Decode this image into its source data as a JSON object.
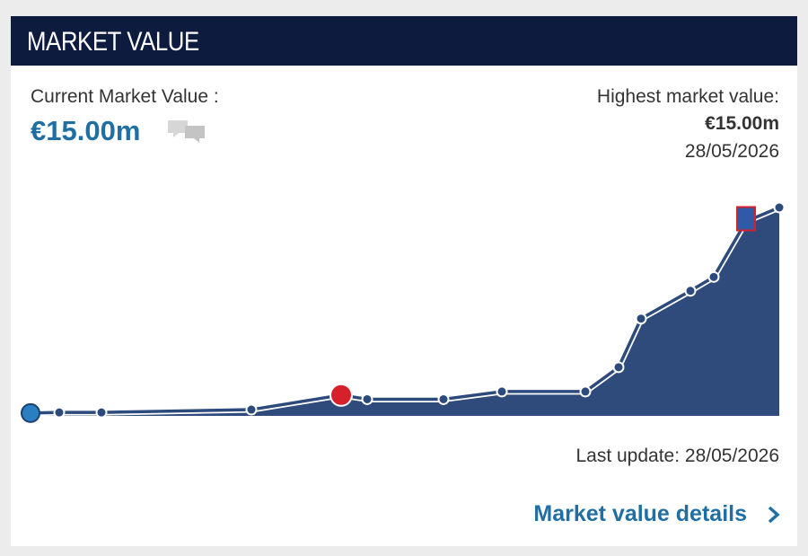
{
  "header": {
    "title": "MARKET VALUE"
  },
  "current": {
    "label": "Current Market Value :",
    "value": "€15.00m"
  },
  "highest": {
    "label": "Highest market value:",
    "value": "€15.00m",
    "date": "28/05/2026"
  },
  "chart_data": {
    "type": "area",
    "values": [
      0.2,
      0.25,
      0.25,
      0.45,
      1.5,
      1.2,
      1.2,
      1.75,
      1.75,
      3.5,
      7,
      9,
      10,
      14,
      15
    ],
    "ylim": [
      0,
      15
    ],
    "color": "#2f4b7c",
    "line_color": "#2c4a7b"
  },
  "footer": {
    "last_update": "Last update: 28/05/2026",
    "link": "Market value details"
  }
}
